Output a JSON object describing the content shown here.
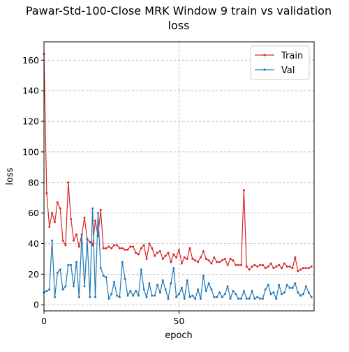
{
  "chart_data": {
    "type": "line",
    "title_line1": "Pawar-Std-100-Close MRK Window 9 train vs validation",
    "title_line2": "loss",
    "xlabel": "epoch",
    "ylabel": "loss",
    "xlim": [
      0,
      100
    ],
    "ylim": [
      -4,
      172
    ],
    "xticks": [
      0,
      50
    ],
    "yticks": [
      0,
      20,
      40,
      60,
      80,
      100,
      120,
      140,
      160
    ],
    "grid": true,
    "legend_position": "top-right",
    "series": [
      {
        "name": "Train",
        "color": "#d62728",
        "values": [
          164,
          73,
          51,
          60,
          54,
          67,
          63,
          42,
          39,
          80,
          56,
          42,
          46,
          38,
          46,
          57,
          43,
          41,
          39,
          55,
          45,
          62,
          37,
          37,
          38,
          37,
          39,
          39,
          37,
          37,
          36,
          36,
          38,
          38,
          34,
          33,
          37,
          39,
          30,
          40,
          37,
          32,
          34,
          35,
          30,
          32,
          34,
          28,
          33,
          31,
          36,
          27,
          31,
          30,
          37,
          30,
          29,
          28,
          31,
          35,
          30,
          29,
          27,
          31,
          28,
          28,
          29,
          30,
          26,
          30,
          29,
          26,
          26,
          26,
          75,
          25,
          23,
          25,
          26,
          25,
          26,
          26,
          24,
          25,
          27,
          24,
          25,
          26,
          24,
          27,
          25,
          25,
          24,
          31,
          22,
          23,
          24,
          24,
          24,
          25
        ]
      },
      {
        "name": "Val",
        "color": "#1f77b4",
        "values": [
          8,
          9,
          10,
          42,
          5,
          21,
          23,
          10,
          12,
          26,
          26,
          12,
          28,
          5,
          46,
          12,
          43,
          5,
          63,
          5,
          60,
          24,
          19,
          18,
          4,
          7,
          15,
          6,
          5,
          28,
          17,
          6,
          9,
          6,
          9,
          6,
          23,
          10,
          5,
          14,
          6,
          6,
          13,
          8,
          16,
          10,
          4,
          14,
          24,
          5,
          7,
          11,
          4,
          16,
          5,
          6,
          4,
          10,
          4,
          19,
          9,
          14,
          10,
          5,
          5,
          8,
          5,
          7,
          12,
          4,
          9,
          7,
          4,
          4,
          9,
          4,
          4,
          9,
          4,
          5,
          4,
          4,
          10,
          13,
          7,
          8,
          4,
          13,
          7,
          8,
          13,
          11,
          11,
          14,
          8,
          6,
          7,
          12,
          8,
          5
        ]
      }
    ]
  }
}
